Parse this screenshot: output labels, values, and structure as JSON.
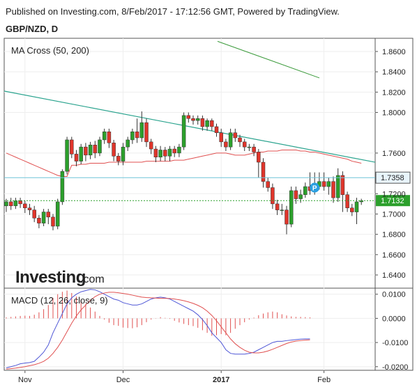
{
  "header": {
    "published": "Published on Investing.com, 8/Feb/2017 - 17:12:56 GMT, Powered by TradingView.",
    "symbol": "GBP/NZD, D"
  },
  "colors": {
    "up": "#2ca02c",
    "down": "#e0352b",
    "ma50": "#e05050",
    "ma200": "#3a9a3a",
    "trendline": "#2aa38e",
    "hline": "#6ec3d8",
    "current": "#2ca02c",
    "macd": "#4f57d6",
    "signal": "#e05050",
    "hist": "#e05050",
    "label_bg": "#e8f4fb",
    "marker": "#2a9fe0"
  },
  "chart_data": [
    {
      "type": "candlestick",
      "title": "MA Cross (50, 200)",
      "yticks": [
        "1.8600",
        "1.8400",
        "1.8200",
        "1.8000",
        "1.7600",
        "1.7200",
        "1.7000",
        "1.6800",
        "1.6600",
        "1.6400"
      ],
      "ylim": [
        1.627,
        1.873
      ],
      "price_labels": {
        "resistance": "1.7358",
        "current": "1.7132"
      },
      "resistance": 1.7358,
      "current": 1.7132,
      "marker_label": "P",
      "candles": [
        [
          1.708,
          1.712,
          1.702,
          1.715
        ],
        [
          1.712,
          1.708,
          1.704,
          1.716
        ],
        [
          1.708,
          1.713,
          1.705,
          1.716
        ],
        [
          1.713,
          1.71,
          1.706,
          1.716
        ],
        [
          1.71,
          1.706,
          1.701,
          1.713
        ],
        [
          1.706,
          1.704,
          1.699,
          1.71
        ],
        [
          1.704,
          1.696,
          1.692,
          1.708
        ],
        [
          1.696,
          1.691,
          1.686,
          1.699
        ],
        [
          1.691,
          1.702,
          1.688,
          1.705
        ],
        [
          1.702,
          1.697,
          1.69,
          1.705
        ],
        [
          1.697,
          1.688,
          1.684,
          1.7
        ],
        [
          1.688,
          1.712,
          1.685,
          1.715
        ],
        [
          1.712,
          1.742,
          1.709,
          1.744
        ],
        [
          1.742,
          1.773,
          1.739,
          1.776
        ],
        [
          1.773,
          1.759,
          1.755,
          1.776
        ],
        [
          1.759,
          1.752,
          1.747,
          1.763
        ],
        [
          1.752,
          1.766,
          1.749,
          1.769
        ],
        [
          1.766,
          1.758,
          1.752,
          1.77
        ],
        [
          1.758,
          1.768,
          1.754,
          1.771
        ],
        [
          1.768,
          1.76,
          1.755,
          1.772
        ],
        [
          1.76,
          1.773,
          1.757,
          1.776
        ],
        [
          1.773,
          1.781,
          1.769,
          1.784
        ],
        [
          1.781,
          1.77,
          1.765,
          1.784
        ],
        [
          1.77,
          1.757,
          1.752,
          1.773
        ],
        [
          1.757,
          1.752,
          1.748,
          1.76
        ],
        [
          1.752,
          1.766,
          1.748,
          1.77
        ],
        [
          1.766,
          1.773,
          1.762,
          1.776
        ],
        [
          1.773,
          1.781,
          1.769,
          1.784
        ],
        [
          1.781,
          1.775,
          1.77,
          1.794
        ],
        [
          1.775,
          1.79,
          1.771,
          1.801
        ],
        [
          1.79,
          1.771,
          1.766,
          1.794
        ],
        [
          1.771,
          1.764,
          1.759,
          1.774
        ],
        [
          1.764,
          1.756,
          1.751,
          1.767
        ],
        [
          1.756,
          1.763,
          1.752,
          1.767
        ],
        [
          1.763,
          1.757,
          1.752,
          1.766
        ],
        [
          1.757,
          1.764,
          1.752,
          1.767
        ],
        [
          1.764,
          1.76,
          1.756,
          1.767
        ],
        [
          1.76,
          1.766,
          1.756,
          1.769
        ],
        [
          1.766,
          1.797,
          1.763,
          1.8
        ],
        [
          1.797,
          1.794,
          1.79,
          1.8
        ],
        [
          1.794,
          1.792,
          1.788,
          1.797
        ],
        [
          1.792,
          1.794,
          1.788,
          1.797
        ],
        [
          1.794,
          1.786,
          1.782,
          1.797
        ],
        [
          1.786,
          1.792,
          1.782,
          1.794
        ],
        [
          1.792,
          1.786,
          1.782,
          1.794
        ],
        [
          1.786,
          1.78,
          1.776,
          1.789
        ],
        [
          1.78,
          1.771,
          1.766,
          1.784
        ],
        [
          1.771,
          1.766,
          1.762,
          1.774
        ],
        [
          1.766,
          1.78,
          1.763,
          1.784
        ],
        [
          1.78,
          1.775,
          1.771,
          1.784
        ],
        [
          1.775,
          1.771,
          1.766,
          1.778
        ],
        [
          1.771,
          1.766,
          1.762,
          1.774
        ],
        [
          1.766,
          1.766,
          1.762,
          1.769
        ],
        [
          1.766,
          1.761,
          1.757,
          1.769
        ],
        [
          1.761,
          1.751,
          1.736,
          1.764
        ],
        [
          1.751,
          1.732,
          1.726,
          1.755
        ],
        [
          1.732,
          1.726,
          1.722,
          1.736
        ],
        [
          1.726,
          1.71,
          1.705,
          1.73
        ],
        [
          1.71,
          1.704,
          1.699,
          1.714
        ],
        [
          1.704,
          1.704,
          1.699,
          1.71
        ],
        [
          1.704,
          1.69,
          1.68,
          1.708
        ],
        [
          1.69,
          1.723,
          1.687,
          1.727
        ],
        [
          1.723,
          1.715,
          1.71,
          1.727
        ],
        [
          1.715,
          1.719,
          1.711,
          1.724
        ],
        [
          1.719,
          1.727,
          1.716,
          1.731
        ],
        [
          1.727,
          1.723,
          1.719,
          1.741
        ],
        [
          1.723,
          1.727,
          1.719,
          1.741
        ],
        [
          1.727,
          1.732,
          1.724,
          1.741
        ],
        [
          1.732,
          1.727,
          1.723,
          1.741
        ],
        [
          1.727,
          1.732,
          1.719,
          1.736
        ],
        [
          1.732,
          1.716,
          1.711,
          1.737
        ],
        [
          1.716,
          1.738,
          1.712,
          1.745
        ],
        [
          1.738,
          1.719,
          1.702,
          1.742
        ],
        [
          1.719,
          1.706,
          1.702,
          1.722
        ],
        [
          1.706,
          1.702,
          1.698,
          1.71
        ],
        [
          1.702,
          1.712,
          1.69,
          1.716
        ],
        [
          1.712,
          1.713,
          1.709,
          1.715
        ]
      ],
      "ma50": [
        1.76,
        1.758,
        1.756,
        1.754,
        1.752,
        1.75,
        1.748,
        1.746,
        1.744,
        1.742,
        1.74,
        1.738,
        1.737,
        1.737,
        1.748,
        1.748,
        1.749,
        1.749,
        1.75,
        1.75,
        1.75,
        1.75,
        1.751,
        1.751,
        1.751,
        1.751,
        1.751,
        1.751,
        1.751,
        1.751,
        1.752,
        1.752,
        1.752,
        1.752,
        1.752,
        1.752,
        1.753,
        1.753,
        1.753,
        1.754,
        1.755,
        1.756,
        1.757,
        1.758,
        1.759,
        1.76,
        1.76,
        1.76,
        1.759,
        1.758,
        1.758,
        1.758,
        1.759,
        1.76,
        1.761,
        1.761,
        1.762,
        1.762,
        1.762,
        1.763,
        1.763,
        1.763,
        1.763,
        1.762,
        1.762,
        1.761,
        1.761,
        1.76,
        1.759,
        1.758,
        1.757,
        1.756,
        1.755,
        1.754,
        1.752,
        1.751,
        1.75
      ],
      "ma200_ends": [
        1.87,
        1.834
      ],
      "trendline_ends": [
        1.821,
        1.751
      ],
      "xticks": [
        "Nov",
        "Dec",
        "2017",
        "Feb"
      ],
      "xtick_index": [
        4,
        25,
        46,
        68
      ]
    },
    {
      "type": "line",
      "title": "MACD (12, 26, close, 9)",
      "yticks": [
        "0.0100",
        "0.0000",
        "-0.0100",
        "-0.0200"
      ],
      "ylim": [
        -0.0215,
        0.0125
      ],
      "series": [
        {
          "name": "MACD",
          "values": [
            -0.0205,
            -0.02,
            -0.0195,
            -0.0188,
            -0.0185,
            -0.0183,
            -0.0178,
            -0.016,
            -0.014,
            -0.011,
            -0.006,
            -0.002,
            0.002,
            0.006,
            0.0085,
            0.01,
            0.011,
            0.0115,
            0.012,
            0.0118,
            0.011,
            0.01,
            0.009,
            0.008,
            0.0075,
            0.0065,
            0.006,
            0.0055,
            0.0055,
            0.006,
            0.007,
            0.008,
            0.0085,
            0.0088,
            0.0085,
            0.008,
            0.007,
            0.006,
            0.005,
            0.004,
            0.003,
            0.0015,
            -0.0005,
            -0.003,
            -0.006,
            -0.008,
            -0.01,
            -0.013,
            -0.0145,
            -0.0148,
            -0.0148,
            -0.0148,
            -0.0145,
            -0.014,
            -0.013,
            -0.012,
            -0.011,
            -0.01,
            -0.0095,
            -0.0095,
            -0.0092,
            -0.009,
            -0.0088,
            -0.0086,
            -0.0085,
            -0.0085
          ]
        },
        {
          "name": "Signal",
          "values": [
            -0.021,
            -0.0208,
            -0.0206,
            -0.0203,
            -0.02,
            -0.0196,
            -0.0192,
            -0.0186,
            -0.0178,
            -0.0165,
            -0.0145,
            -0.012,
            -0.009,
            -0.0055,
            -0.002,
            0.001,
            0.0035,
            0.0055,
            0.0075,
            0.009,
            0.01,
            0.0105,
            0.0108,
            0.0108,
            0.0106,
            0.0103,
            0.01,
            0.0096,
            0.0092,
            0.0088,
            0.0086,
            0.0085,
            0.0084,
            0.0083,
            0.0083,
            0.0082,
            0.008,
            0.0077,
            0.0073,
            0.0068,
            0.0062,
            0.0054,
            0.0044,
            0.003,
            0.0012,
            -0.001,
            -0.0035,
            -0.006,
            -0.0085,
            -0.0105,
            -0.012,
            -0.0132,
            -0.014,
            -0.0143,
            -0.0143,
            -0.014,
            -0.0135,
            -0.0128,
            -0.012,
            -0.0112,
            -0.0104,
            -0.0098,
            -0.0094,
            -0.0092,
            -0.009,
            -0.0089
          ]
        }
      ],
      "hist": [
        0.0004,
        0.0006,
        0.0008,
        0.001,
        0.0011,
        0.001,
        0.0015,
        0.0025,
        0.0038,
        0.0055,
        0.0085,
        0.01,
        0.011,
        0.0115,
        0.0105,
        0.009,
        0.0075,
        0.006,
        0.0045,
        0.0028,
        0.001,
        -0.0005,
        -0.0018,
        -0.0028,
        -0.0031,
        -0.0038,
        -0.004,
        -0.0041,
        -0.0037,
        -0.0028,
        -0.0016,
        -0.0005,
        0.0001,
        0.0005,
        0.0002,
        -0.0002,
        -0.001,
        -0.0017,
        -0.0023,
        -0.0028,
        -0.0032,
        -0.0039,
        -0.0049,
        -0.006,
        -0.0072,
        -0.007,
        -0.0065,
        -0.007,
        -0.006,
        -0.0043,
        -0.0028,
        -0.0016,
        -0.0005,
        0.0003,
        0.0013,
        0.002,
        0.0025,
        0.0028,
        0.0025,
        0.0017,
        0.0012,
        0.0008,
        0.0006,
        0.0006,
        0.0005,
        0.0004
      ]
    }
  ],
  "logo": {
    "brand": "Investing",
    "suffix": ".com"
  }
}
